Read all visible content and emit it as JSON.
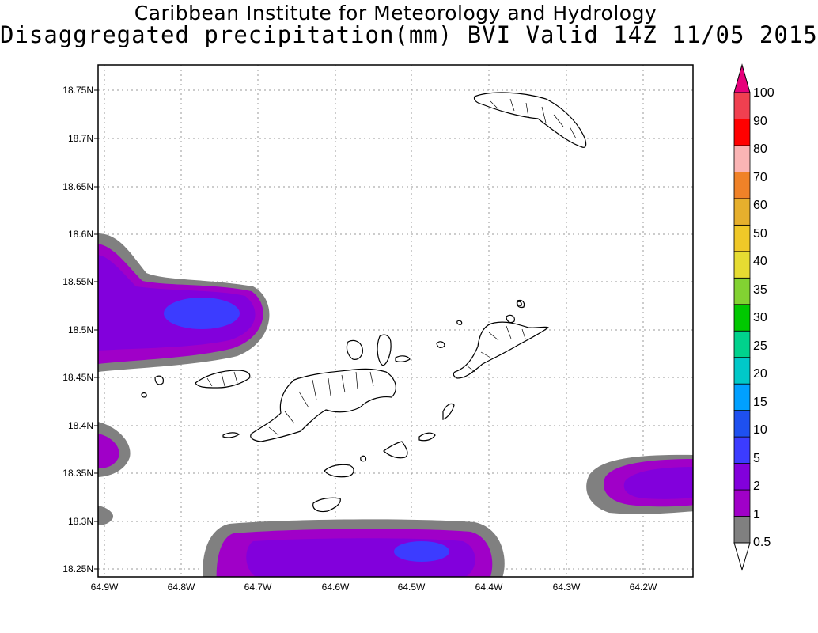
{
  "title": "Caribbean Institute for Meteorology and Hydrology",
  "subtitle": "Disaggregated precipitation(mm) BVI Valid 14Z 11/05 2015",
  "axes": {
    "y_ticks": [
      "18.75N",
      "18.7N",
      "18.65N",
      "18.6N",
      "18.55N",
      "18.5N",
      "18.45N",
      "18.4N",
      "18.35N",
      "18.3N",
      "18.25N"
    ],
    "x_ticks": [
      "64.9W",
      "64.8W",
      "64.7W",
      "64.6W",
      "64.5W",
      "64.4W",
      "64.3W",
      "64.2W"
    ],
    "lat_range": [
      18.24,
      18.79
    ],
    "lon_range": [
      -64.905,
      -64.14
    ],
    "grid": true
  },
  "legend": {
    "labels": [
      "0.5",
      "1",
      "2",
      "5",
      "10",
      "15",
      "20",
      "25",
      "30",
      "35",
      "40",
      "50",
      "60",
      "70",
      "80",
      "90",
      "100"
    ],
    "colors": [
      "#808080",
      "#a000c8",
      "#8200dc",
      "#3c3cff",
      "#1e50f0",
      "#00a0ff",
      "#00c8c8",
      "#00d28c",
      "#00c800",
      "#82d232",
      "#e6dc32",
      "#f0c828",
      "#e6af2d",
      "#f08228",
      "#fab4b4",
      "#ff0000",
      "#f04050",
      "#e6007a"
    ],
    "top_color": "#e6007a",
    "bottom_color": "#ffffff"
  },
  "chart_data": {
    "type": "heatmap",
    "title": "Caribbean Institute for Meteorology and Hydrology",
    "subtitle": "Disaggregated precipitation(mm) BVI Valid 14Z 11/05 2015",
    "xlabel": "",
    "ylabel": "",
    "precip_areas": [
      {
        "lon": -64.8,
        "lat": 18.52,
        "peak_mm": 5
      },
      {
        "lon": -64.5,
        "lat": 18.27,
        "peak_mm": 5
      },
      {
        "lon": -64.17,
        "lat": 18.34,
        "peak_mm": 2
      },
      {
        "lon": -64.9,
        "lat": 18.375,
        "peak_mm": 2
      },
      {
        "lon": -64.9,
        "lat": 18.305,
        "peak_mm": 1
      }
    ]
  }
}
